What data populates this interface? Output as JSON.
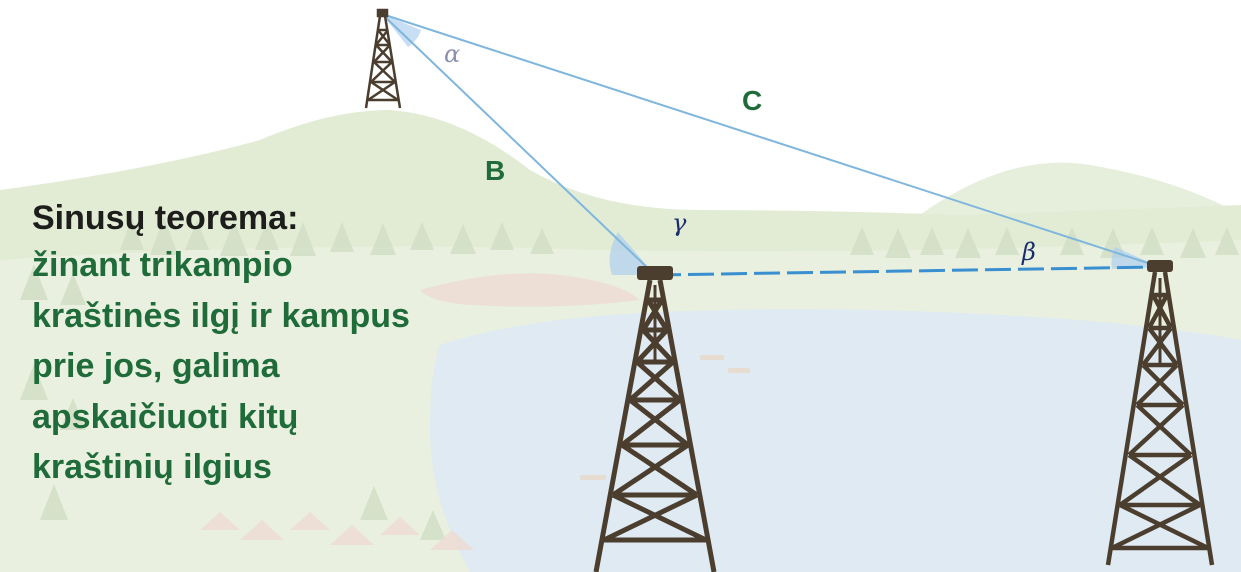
{
  "diagram": {
    "side_labels": {
      "b": "B",
      "c": "C"
    },
    "angle_labels": {
      "alpha": "α",
      "beta": "β",
      "gamma": "γ"
    }
  },
  "text": {
    "title": "Sinusų teorema:",
    "body_lines": [
      "žinant trikampio",
      "kraštinės ilgį ir kampus",
      "prie jos, galima",
      "apskaičiuoti kitų",
      "kraštinių ilgius"
    ]
  },
  "colors": {
    "side_label": "#1f6b3a",
    "title": "#1d1d1b",
    "body": "#1f6b3a",
    "triangle_line": "#7fb6dd",
    "dashed_base": "#3a8fd0",
    "angle_fill": "#a9cdef",
    "tower": "#4b3e2f",
    "water": "#dce9f3",
    "hills": "#dde9cf",
    "trees": "#cfdcc0"
  },
  "icons": [
    "tower-icon-top",
    "tower-icon-left",
    "tower-icon-right"
  ]
}
